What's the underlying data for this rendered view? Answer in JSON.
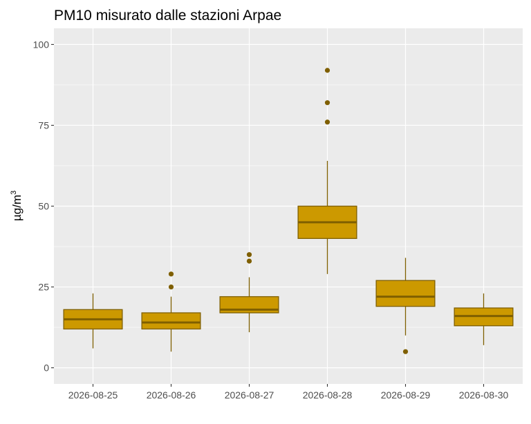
{
  "chart_data": {
    "type": "boxplot",
    "title": "PM10 misurato dalle stazioni Arpae",
    "xlabel": "",
    "ylabel": {
      "base": "µg/m",
      "superscript": "3"
    },
    "ylim": [
      -5,
      105
    ],
    "yticks": [
      0,
      25,
      50,
      75,
      100
    ],
    "grid": true,
    "fill_color": "#CC9900",
    "line_color": "#7F5F00",
    "panel_color": "#EBEBEB",
    "categories": [
      "2026-08-25",
      "2026-08-26",
      "2026-08-27",
      "2026-08-28",
      "2026-08-29",
      "2026-08-30"
    ],
    "boxes": [
      {
        "category": "2026-08-25",
        "whisker_low": 6,
        "q1": 12,
        "median": 15,
        "q3": 18,
        "whisker_high": 23,
        "outliers": []
      },
      {
        "category": "2026-08-26",
        "whisker_low": 5,
        "q1": 12,
        "median": 14,
        "q3": 17,
        "whisker_high": 22,
        "outliers": [
          25,
          29
        ]
      },
      {
        "category": "2026-08-27",
        "whisker_low": 11,
        "q1": 17,
        "median": 18,
        "q3": 22,
        "whisker_high": 28,
        "outliers": [
          33,
          35
        ]
      },
      {
        "category": "2026-08-28",
        "whisker_low": 29,
        "q1": 40,
        "median": 45,
        "q3": 50,
        "whisker_high": 64,
        "outliers": [
          76,
          82,
          92
        ]
      },
      {
        "category": "2026-08-29",
        "whisker_low": 10,
        "q1": 19,
        "median": 22,
        "q3": 27,
        "whisker_high": 34,
        "outliers": [
          5
        ]
      },
      {
        "category": "2026-08-30",
        "whisker_low": 7,
        "q1": 13,
        "median": 16,
        "q3": 18.5,
        "whisker_high": 23,
        "outliers": []
      }
    ]
  }
}
